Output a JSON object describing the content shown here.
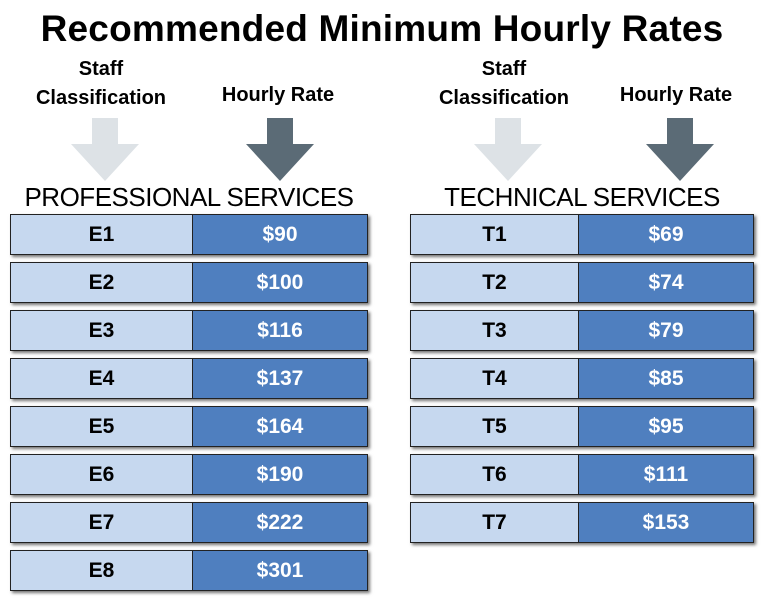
{
  "title": "Recommended Minimum Hourly Rates",
  "headers": {
    "classification": "Staff\nClassification",
    "rate": "Hourly Rate"
  },
  "icons": {
    "classification_arrow": "down-arrow-icon-light",
    "rate_arrow": "down-arrow-icon-dark"
  },
  "colors": {
    "code_cell": "#c6d8ef",
    "rate_cell": "#4f7fbf",
    "arrow_light": "#dde2e6",
    "arrow_dark": "#5b6b76"
  },
  "professional": {
    "title": "PROFESSIONAL SERVICES",
    "rows": [
      {
        "code": "E1",
        "rate": "$90"
      },
      {
        "code": "E2",
        "rate": "$100"
      },
      {
        "code": "E3",
        "rate": "$116"
      },
      {
        "code": "E4",
        "rate": "$137"
      },
      {
        "code": "E5",
        "rate": "$164"
      },
      {
        "code": "E6",
        "rate": "$190"
      },
      {
        "code": "E7",
        "rate": "$222"
      },
      {
        "code": "E8",
        "rate": "$301"
      }
    ]
  },
  "technical": {
    "title": "TECHNICAL SERVICES",
    "rows": [
      {
        "code": "T1",
        "rate": "$69"
      },
      {
        "code": "T2",
        "rate": "$74"
      },
      {
        "code": "T3",
        "rate": "$79"
      },
      {
        "code": "T4",
        "rate": "$85"
      },
      {
        "code": "T5",
        "rate": "$95"
      },
      {
        "code": "T6",
        "rate": "$111"
      },
      {
        "code": "T7",
        "rate": "$153"
      }
    ]
  }
}
